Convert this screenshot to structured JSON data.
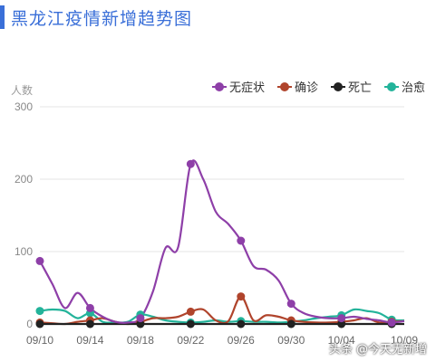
{
  "page": {
    "title": "黑龙江疫情新增趋势图",
    "watermark": "头条 @今天无新增"
  },
  "chart_data": {
    "type": "line",
    "title": "黑龙江疫情新增趋势图",
    "ylabel": "人数",
    "xlabel": "",
    "ylim": [
      0,
      300
    ],
    "yticks": [
      0,
      100,
      200,
      300
    ],
    "grid": true,
    "legend_position": "top-right",
    "x": [
      "09/10",
      "09/11",
      "09/12",
      "09/13",
      "09/14",
      "09/15",
      "09/16",
      "09/17",
      "09/18",
      "09/19",
      "09/20",
      "09/21",
      "09/22",
      "09/23",
      "09/24",
      "09/25",
      "09/26",
      "09/27",
      "09/28",
      "09/29",
      "09/30",
      "10/01",
      "10/02",
      "10/03",
      "10/04",
      "10/05",
      "10/06",
      "10/07",
      "10/08",
      "10/09"
    ],
    "xticks": [
      "09/10",
      "09/14",
      "09/18",
      "09/22",
      "09/26",
      "09/30",
      "10/04",
      "10/09"
    ],
    "series": [
      {
        "name": "无症状",
        "color": "#8e3fa8",
        "values": [
          87,
          55,
          22,
          43,
          22,
          10,
          3,
          2,
          8,
          45,
          105,
          106,
          221,
          200,
          155,
          138,
          115,
          80,
          75,
          60,
          28,
          15,
          10,
          8,
          8,
          10,
          7,
          5,
          2,
          4
        ]
      },
      {
        "name": "确诊",
        "color": "#b0442c",
        "values": [
          2,
          1,
          0,
          3,
          5,
          8,
          3,
          0,
          3,
          8,
          8,
          10,
          17,
          20,
          5,
          4,
          38,
          5,
          12,
          10,
          5,
          3,
          2,
          2,
          3,
          5,
          8,
          2,
          3,
          4
        ]
      },
      {
        "name": "死亡",
        "color": "#222222",
        "values": [
          0,
          0,
          0,
          0,
          0,
          0,
          0,
          0,
          0,
          0,
          0,
          0,
          0,
          0,
          0,
          0,
          0,
          0,
          0,
          0,
          0,
          0,
          0,
          0,
          0,
          0,
          0,
          0,
          0,
          0
        ]
      },
      {
        "name": "治愈",
        "color": "#23b39a",
        "values": [
          18,
          20,
          18,
          8,
          15,
          3,
          2,
          3,
          13,
          10,
          5,
          3,
          2,
          3,
          5,
          3,
          4,
          3,
          3,
          2,
          3,
          5,
          8,
          10,
          12,
          20,
          18,
          15,
          6,
          5
        ]
      }
    ]
  }
}
